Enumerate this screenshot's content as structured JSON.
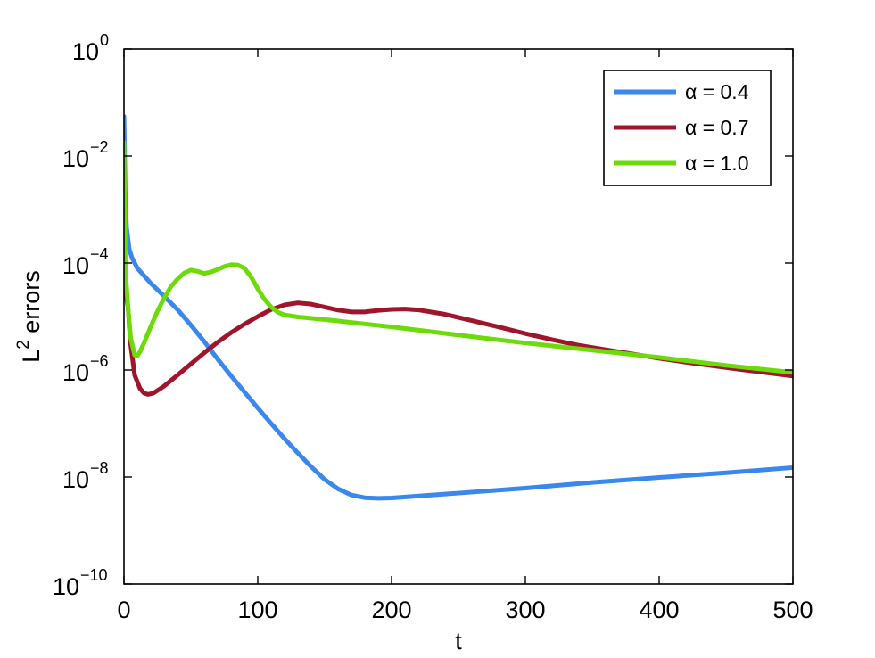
{
  "chart_data": {
    "type": "line",
    "xlabel": "t",
    "ylabel_base": "L",
    "ylabel_sup": "2",
    "ylabel_rest": " errors",
    "xlim": [
      0,
      500
    ],
    "ylim": [
      1e-10,
      1
    ],
    "y_scale": "log",
    "grid": false,
    "legend_position": "top-right",
    "x_ticks": [
      0,
      100,
      200,
      300,
      400,
      500
    ],
    "x_tick_labels": [
      "0",
      "100",
      "200",
      "300",
      "400",
      "500"
    ],
    "y_ticks": [
      1e-10,
      1e-08,
      1e-06,
      0.0001,
      0.01,
      1
    ],
    "y_tick_labels": [
      {
        "base": "10",
        "exp": "−10"
      },
      {
        "base": "10",
        "exp": "−8"
      },
      {
        "base": "10",
        "exp": "−6"
      },
      {
        "base": "10",
        "exp": "−4"
      },
      {
        "base": "10",
        "exp": "−2"
      },
      {
        "base": "10",
        "exp": "0"
      }
    ],
    "series": [
      {
        "name": "α = 0.4",
        "color": "#3a87ee",
        "points": [
          [
            0,
            0.055
          ],
          [
            0.5,
            0.01
          ],
          [
            1,
            0.0018
          ],
          [
            2,
            0.00045
          ],
          [
            4,
            0.00018
          ],
          [
            6,
            0.000125
          ],
          [
            10,
            8e-05
          ],
          [
            20,
            4.2e-05
          ],
          [
            30,
            2.4e-05
          ],
          [
            40,
            1.35e-05
          ],
          [
            50,
            6.9e-06
          ],
          [
            60,
            3.4e-06
          ],
          [
            70,
            1.6e-06
          ],
          [
            80,
            7.8e-07
          ],
          [
            90,
            3.9e-07
          ],
          [
            100,
            1.95e-07
          ],
          [
            110,
            1e-07
          ],
          [
            120,
            5.2e-08
          ],
          [
            130,
            2.8e-08
          ],
          [
            140,
            1.55e-08
          ],
          [
            150,
            9e-09
          ],
          [
            160,
            6e-09
          ],
          [
            170,
            4.6e-09
          ],
          [
            180,
            4.1e-09
          ],
          [
            190,
            4e-09
          ],
          [
            200,
            4.05e-09
          ],
          [
            250,
            5e-09
          ],
          [
            300,
            6.2e-09
          ],
          [
            350,
            7.9e-09
          ],
          [
            400,
            9.8e-09
          ],
          [
            450,
            1.2e-08
          ],
          [
            500,
            1.5e-08
          ]
        ]
      },
      {
        "name": "α = 0.7",
        "color": "#a0152b",
        "points": [
          [
            0,
            0.012
          ],
          [
            1,
            3e-05
          ],
          [
            3,
            1.5e-05
          ],
          [
            5,
            3e-06
          ],
          [
            8,
            8e-07
          ],
          [
            12,
            4.5e-07
          ],
          [
            15,
            3.7e-07
          ],
          [
            18,
            3.5e-07
          ],
          [
            22,
            3.7e-07
          ],
          [
            30,
            5e-07
          ],
          [
            40,
            8e-07
          ],
          [
            50,
            1.3e-06
          ],
          [
            60,
            2.1e-06
          ],
          [
            70,
            3.3e-06
          ],
          [
            80,
            5e-06
          ],
          [
            90,
            7.2e-06
          ],
          [
            100,
            1e-05
          ],
          [
            110,
            1.35e-05
          ],
          [
            120,
            1.65e-05
          ],
          [
            130,
            1.8e-05
          ],
          [
            140,
            1.7e-05
          ],
          [
            150,
            1.5e-05
          ],
          [
            160,
            1.32e-05
          ],
          [
            170,
            1.22e-05
          ],
          [
            180,
            1.22e-05
          ],
          [
            190,
            1.3e-05
          ],
          [
            200,
            1.36e-05
          ],
          [
            210,
            1.38e-05
          ],
          [
            220,
            1.33e-05
          ],
          [
            240,
            1.1e-05
          ],
          [
            260,
            8.4e-06
          ],
          [
            280,
            6.4e-06
          ],
          [
            300,
            4.8e-06
          ],
          [
            320,
            3.7e-06
          ],
          [
            340,
            2.9e-06
          ],
          [
            360,
            2.4e-06
          ],
          [
            380,
            2e-06
          ],
          [
            400,
            1.65e-06
          ],
          [
            420,
            1.4e-06
          ],
          [
            440,
            1.2e-06
          ],
          [
            460,
            1.03e-06
          ],
          [
            480,
            8.9e-07
          ],
          [
            500,
            7.7e-07
          ]
        ]
      },
      {
        "name": "α = 1.0",
        "color": "#6ddb0a",
        "points": [
          [
            0,
            0.018
          ],
          [
            1,
            8e-05
          ],
          [
            3,
            1.5e-05
          ],
          [
            5,
            4e-06
          ],
          [
            8,
            1.9e-06
          ],
          [
            10,
            1.85e-06
          ],
          [
            12,
            2.2e-06
          ],
          [
            15,
            3.2e-06
          ],
          [
            20,
            6.5e-06
          ],
          [
            25,
            1.25e-05
          ],
          [
            30,
            2.2e-05
          ],
          [
            35,
            3.6e-05
          ],
          [
            40,
            5e-05
          ],
          [
            45,
            6.5e-05
          ],
          [
            50,
            7.4e-05
          ],
          [
            55,
            7e-05
          ],
          [
            60,
            6.4e-05
          ],
          [
            65,
            6.8e-05
          ],
          [
            70,
            7.6e-05
          ],
          [
            75,
            8.6e-05
          ],
          [
            80,
            9.3e-05
          ],
          [
            85,
            9.2e-05
          ],
          [
            90,
            8e-05
          ],
          [
            95,
            5.5e-05
          ],
          [
            100,
            3.3e-05
          ],
          [
            105,
            2.1e-05
          ],
          [
            110,
            1.5e-05
          ],
          [
            115,
            1.2e-05
          ],
          [
            120,
            1.07e-05
          ],
          [
            130,
            9.8e-06
          ],
          [
            150,
            8.8e-06
          ],
          [
            200,
            6.4e-06
          ],
          [
            250,
            4.5e-06
          ],
          [
            300,
            3.2e-06
          ],
          [
            350,
            2.35e-06
          ],
          [
            400,
            1.72e-06
          ],
          [
            450,
            1.22e-06
          ],
          [
            500,
            9e-07
          ]
        ]
      }
    ]
  }
}
